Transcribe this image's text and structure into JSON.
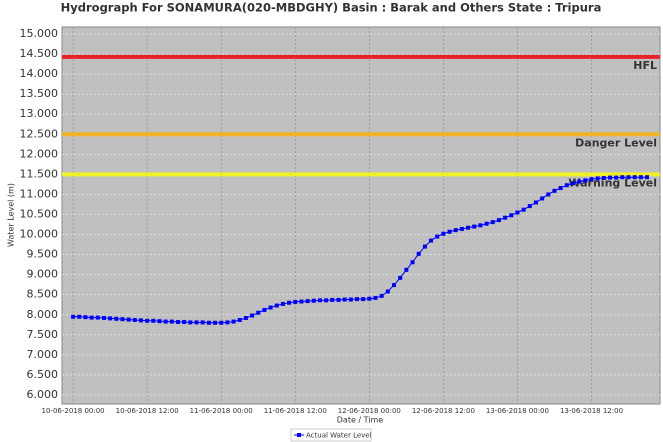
{
  "chart_data": {
    "type": "line",
    "title": "Hydrograph For SONAMURA(020-MBDGHY) Basin : Barak and Others State : Tripura",
    "x_label": "Date / Time",
    "y_label": "Water Level (m)",
    "x": [
      "10-06-2018 00:00",
      "10-06-2018 01:00",
      "10-06-2018 02:00",
      "10-06-2018 03:00",
      "10-06-2018 04:00",
      "10-06-2018 05:00",
      "10-06-2018 06:00",
      "10-06-2018 07:00",
      "10-06-2018 08:00",
      "10-06-2018 09:00",
      "10-06-2018 10:00",
      "10-06-2018 11:00",
      "10-06-2018 12:00",
      "10-06-2018 13:00",
      "10-06-2018 14:00",
      "10-06-2018 15:00",
      "10-06-2018 16:00",
      "10-06-2018 17:00",
      "10-06-2018 18:00",
      "10-06-2018 19:00",
      "10-06-2018 20:00",
      "10-06-2018 21:00",
      "10-06-2018 22:00",
      "10-06-2018 23:00",
      "11-06-2018 00:00",
      "11-06-2018 01:00",
      "11-06-2018 02:00",
      "11-06-2018 03:00",
      "11-06-2018 04:00",
      "11-06-2018 05:00",
      "11-06-2018 06:00",
      "11-06-2018 07:00",
      "11-06-2018 08:00",
      "11-06-2018 09:00",
      "11-06-2018 10:00",
      "11-06-2018 11:00",
      "11-06-2018 12:00",
      "11-06-2018 13:00",
      "11-06-2018 14:00",
      "11-06-2018 15:00",
      "11-06-2018 16:00",
      "11-06-2018 17:00",
      "11-06-2018 18:00",
      "11-06-2018 19:00",
      "11-06-2018 20:00",
      "11-06-2018 21:00",
      "11-06-2018 22:00",
      "11-06-2018 23:00",
      "12-06-2018 00:00",
      "12-06-2018 01:00",
      "12-06-2018 02:00",
      "12-06-2018 03:00",
      "12-06-2018 04:00",
      "12-06-2018 05:00",
      "12-06-2018 06:00",
      "12-06-2018 07:00",
      "12-06-2018 08:00",
      "12-06-2018 09:00",
      "12-06-2018 10:00",
      "12-06-2018 11:00",
      "12-06-2018 12:00",
      "12-06-2018 13:00",
      "12-06-2018 14:00",
      "12-06-2018 15:00",
      "12-06-2018 16:00",
      "12-06-2018 17:00",
      "12-06-2018 18:00",
      "12-06-2018 19:00",
      "12-06-2018 20:00",
      "12-06-2018 21:00",
      "12-06-2018 22:00",
      "12-06-2018 23:00",
      "13-06-2018 00:00",
      "13-06-2018 01:00",
      "13-06-2018 02:00",
      "13-06-2018 03:00",
      "13-06-2018 04:00",
      "13-06-2018 05:00",
      "13-06-2018 06:00",
      "13-06-2018 07:00",
      "13-06-2018 08:00",
      "13-06-2018 09:00",
      "13-06-2018 10:00",
      "13-06-2018 11:00",
      "13-06-2018 12:00",
      "13-06-2018 13:00",
      "13-06-2018 14:00",
      "13-06-2018 15:00",
      "13-06-2018 16:00",
      "13-06-2018 17:00",
      "13-06-2018 18:00",
      "13-06-2018 19:00",
      "13-06-2018 20:00",
      "13-06-2018 21:00"
    ],
    "series": [
      {
        "name": "Actual Water Level",
        "color": "#0000ff",
        "values": [
          7.95,
          7.95,
          7.94,
          7.93,
          7.93,
          7.92,
          7.91,
          7.9,
          7.89,
          7.88,
          7.87,
          7.86,
          7.85,
          7.85,
          7.84,
          7.83,
          7.83,
          7.82,
          7.82,
          7.81,
          7.81,
          7.81,
          7.8,
          7.8,
          7.8,
          7.81,
          7.83,
          7.87,
          7.92,
          7.98,
          8.05,
          8.12,
          8.18,
          8.23,
          8.27,
          8.3,
          8.32,
          8.33,
          8.34,
          8.35,
          8.36,
          8.36,
          8.37,
          8.37,
          8.38,
          8.38,
          8.39,
          8.39,
          8.4,
          8.42,
          8.47,
          8.58,
          8.74,
          8.92,
          9.12,
          9.31,
          9.52,
          9.7,
          9.85,
          9.95,
          10.02,
          10.07,
          10.11,
          10.14,
          10.17,
          10.2,
          10.23,
          10.27,
          10.31,
          10.36,
          10.42,
          10.48,
          10.55,
          10.62,
          10.71,
          10.8,
          10.9,
          11.0,
          11.09,
          11.16,
          11.23,
          11.28,
          11.32,
          11.35,
          11.38,
          11.4,
          11.41,
          11.42,
          11.42,
          11.43,
          11.43,
          11.43,
          11.43,
          11.43
        ]
      }
    ],
    "reference_lines": [
      {
        "label": "HFL",
        "value": 14.43,
        "color": "#e8202a"
      },
      {
        "label": "Danger Level",
        "value": 12.5,
        "color": "#f0b428"
      },
      {
        "label": "Warning Level",
        "value": 11.5,
        "color": "#f0f028"
      }
    ],
    "xlim": [
      "09-06-2018 22:12",
      "13-06-2018 23:06"
    ],
    "xticks": [
      "10-06-2018 00:00",
      "10-06-2018 12:00",
      "11-06-2018 00:00",
      "11-06-2018 12:00",
      "12-06-2018 00:00",
      "12-06-2018 12:00",
      "13-06-2018 00:00",
      "13-06-2018 12:00"
    ],
    "ylim": [
      5.775,
      15.175
    ],
    "yticks": [
      {
        "value": 6,
        "label": "6.000"
      },
      {
        "value": 6.5,
        "label": "6.500"
      },
      {
        "value": 7,
        "label": "7.000"
      },
      {
        "value": 7.5,
        "label": "7.500"
      },
      {
        "value": 8,
        "label": "8.000"
      },
      {
        "value": 8.5,
        "label": "8.500"
      },
      {
        "value": 9,
        "label": "9.000"
      },
      {
        "value": 9.5,
        "label": "9.500"
      },
      {
        "value": 10,
        "label": "10.000"
      },
      {
        "value": 10.5,
        "label": "10.500"
      },
      {
        "value": 11,
        "label": "11.000"
      },
      {
        "value": 11.5,
        "label": "11.500"
      },
      {
        "value": 12,
        "label": "12.000"
      },
      {
        "value": 12.5,
        "label": "12.500"
      },
      {
        "value": 13,
        "label": "13.000"
      },
      {
        "value": 13.5,
        "label": "13.500"
      },
      {
        "value": 14,
        "label": "14.000"
      },
      {
        "value": 14.5,
        "label": "14.500"
      },
      {
        "value": 15,
        "label": "15.000"
      }
    ],
    "grid": true
  }
}
